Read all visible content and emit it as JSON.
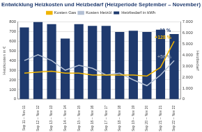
{
  "chart_data": {
    "type": "bar",
    "title": "Entwicklung Heizkosten und Heizbedarf (Heizperiode September – November)",
    "y_label": "Heizkosten in €",
    "y2_label": "Heizbedarf",
    "categories": [
      "Sep 11 – Nov 11",
      "Sep 12 – Nov 12",
      "Sep 13 – Nov 13",
      "Sep 14 – Nov 14",
      "Sep 15 – Nov 15",
      "Sep 16 – Nov 16",
      "Sep 17 – Nov 17",
      "Sep 18 – Nov 18",
      "Sep 19 – Nov 19",
      "Sep 20 – Nov 20",
      "Sep 21 – Nov 21",
      "Sep 22 – Nov 22"
    ],
    "series": [
      {
        "name": "Heizbedarf in kWh",
        "type": "bar",
        "axis": "y2",
        "color": "#1f3a6e",
        "values": [
          6500,
          7000,
          6800,
          5500,
          6800,
          6650,
          6650,
          6100,
          6200,
          6100,
          6300,
          5900
        ]
      },
      {
        "name": "Kosten Gas",
        "type": "line",
        "color": "#f0b400",
        "values": [
          270,
          280,
          290,
          270,
          270,
          250,
          250,
          250,
          250,
          240,
          330,
          600
        ]
      },
      {
        "name": "Kosten Heizöl",
        "type": "line",
        "color": "#b4c0d4",
        "values": [
          400,
          460,
          400,
          300,
          350,
          320,
          250,
          270,
          200,
          140,
          250,
          400
        ]
      }
    ],
    "annotations": [
      "-10 %",
      "+128 %",
      "+56 %"
    ],
    "ylim": [
      0,
      800
    ],
    "yticks": [
      0,
      100,
      200,
      300,
      400,
      500,
      600,
      700,
      800
    ],
    "y2lim": [
      0,
      7000
    ],
    "y2ticks": [
      0,
      {
        "value": 1000,
        "label": "1.000"
      },
      {
        "value": 2000,
        "label": "2.000"
      },
      {
        "value": 3000,
        "label": "3.000"
      },
      {
        "value": 4000,
        "label": "4.000"
      },
      {
        "value": 5000,
        "label": "5.000"
      },
      {
        "value": 6000,
        "label": "6.000"
      },
      {
        "value": 7000,
        "label": "7.000"
      }
    ],
    "grid": true,
    "legend": "top"
  }
}
